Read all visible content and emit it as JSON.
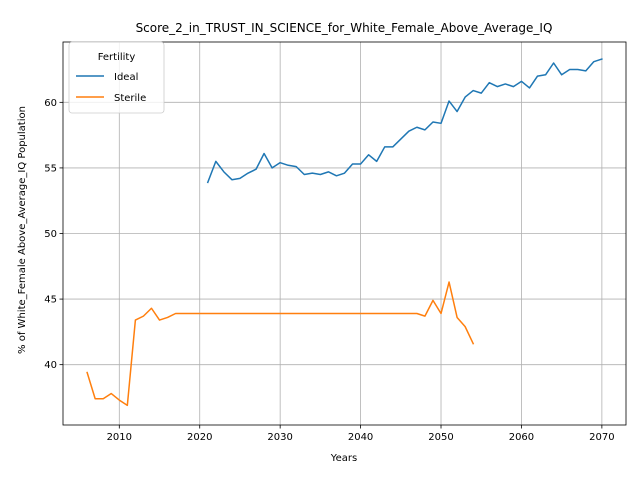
{
  "chart_data": {
    "type": "line",
    "title": "Score_2_in_TRUST_IN_SCIENCE_for_White_Female_Above_Average_IQ",
    "xlabel": "Years",
    "ylabel": "% of White_Female Above_Average_IQ Population",
    "xlim": [
      2003,
      2073
    ],
    "ylim": [
      35.4,
      64.6
    ],
    "xticks": [
      2010,
      2020,
      2030,
      2040,
      2050,
      2060,
      2070
    ],
    "yticks": [
      40,
      45,
      50,
      55,
      60
    ],
    "grid": true,
    "legend": {
      "title": "Fertility",
      "position": "top-left"
    },
    "series": [
      {
        "name": "Ideal",
        "color": "#1f77b4",
        "x": [
          2021,
          2022,
          2023,
          2024,
          2025,
          2026,
          2027,
          2028,
          2029,
          2030,
          2031,
          2032,
          2033,
          2034,
          2035,
          2036,
          2037,
          2038,
          2039,
          2040,
          2041,
          2042,
          2043,
          2044,
          2045,
          2046,
          2047,
          2048,
          2049,
          2050,
          2051,
          2052,
          2053,
          2054,
          2055,
          2056,
          2057,
          2058,
          2059,
          2060,
          2061,
          2062,
          2063,
          2064,
          2065,
          2066,
          2067,
          2068,
          2069,
          2070
        ],
        "y": [
          53.9,
          55.5,
          54.7,
          54.1,
          54.2,
          54.6,
          54.9,
          56.1,
          55.0,
          55.4,
          55.2,
          55.1,
          54.5,
          54.6,
          54.5,
          54.7,
          54.4,
          54.6,
          55.3,
          55.3,
          56.0,
          55.5,
          56.6,
          56.6,
          57.2,
          57.8,
          58.1,
          57.9,
          58.5,
          58.4,
          60.1,
          59.3,
          60.4,
          60.9,
          60.7,
          61.5,
          61.2,
          61.4,
          61.2,
          61.6,
          61.1,
          62.0,
          62.1,
          63.0,
          62.1,
          62.5,
          62.5,
          62.4,
          63.1,
          63.3
        ]
      },
      {
        "name": "Sterile",
        "color": "#ff7f0e",
        "x": [
          2006,
          2007,
          2008,
          2009,
          2010,
          2011,
          2012,
          2013,
          2014,
          2015,
          2016,
          2017,
          2018,
          2019,
          2020,
          2021,
          2022,
          2023,
          2024,
          2025,
          2026,
          2027,
          2028,
          2029,
          2030,
          2031,
          2032,
          2033,
          2034,
          2035,
          2036,
          2037,
          2038,
          2039,
          2040,
          2041,
          2042,
          2043,
          2044,
          2045,
          2046,
          2047,
          2048,
          2049,
          2050,
          2051,
          2052,
          2053,
          2054
        ],
        "y": [
          39.4,
          37.4,
          37.4,
          37.8,
          37.3,
          36.9,
          43.4,
          43.7,
          44.3,
          43.4,
          43.6,
          43.9,
          43.9,
          43.9,
          43.9,
          43.9,
          43.9,
          43.9,
          43.9,
          43.9,
          43.9,
          43.9,
          43.9,
          43.9,
          43.9,
          43.9,
          43.9,
          43.9,
          43.9,
          43.9,
          43.9,
          43.9,
          43.9,
          43.9,
          43.9,
          43.9,
          43.9,
          43.9,
          43.9,
          43.9,
          43.9,
          43.9,
          43.7,
          44.9,
          43.9,
          46.3,
          43.6,
          42.9,
          41.6
        ]
      }
    ]
  }
}
